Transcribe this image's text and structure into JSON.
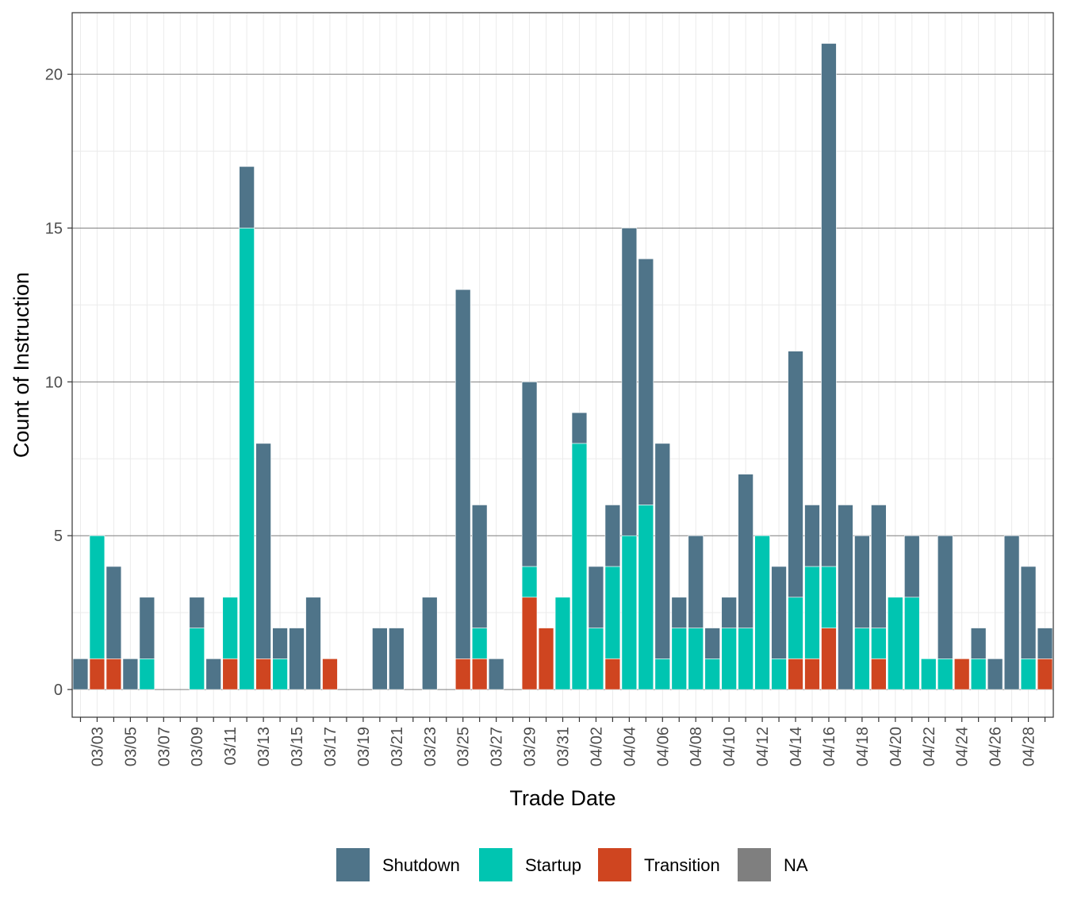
{
  "chart_data": {
    "type": "bar",
    "stacked": true,
    "xlabel": "Trade Date",
    "ylabel": "Count of Instruction",
    "ylim": [
      -0.9,
      22
    ],
    "y_ticks": [
      0,
      5,
      10,
      15,
      20
    ],
    "x_tick_labels": [
      "03/03",
      "03/05",
      "03/07",
      "03/09",
      "03/11",
      "03/13",
      "03/15",
      "03/17",
      "03/19",
      "03/21",
      "03/23",
      "03/25",
      "03/27",
      "03/29",
      "03/31",
      "04/02",
      "04/04",
      "04/06",
      "04/08",
      "04/10",
      "04/12",
      "04/14",
      "04/16",
      "04/18",
      "04/20",
      "04/22",
      "04/24",
      "04/26",
      "04/28"
    ],
    "grid": true,
    "legend_position": "bottom",
    "colors": {
      "Shutdown": "#4f7489",
      "Startup": "#00c5b1",
      "Transition": "#cf4520",
      "NA": "#7f7f7f"
    },
    "categories": [
      "03/02",
      "03/03",
      "03/04",
      "03/05",
      "03/06",
      "03/07",
      "03/08",
      "03/09",
      "03/10",
      "03/11",
      "03/12",
      "03/13",
      "03/14",
      "03/15",
      "03/16",
      "03/17",
      "03/18",
      "03/19",
      "03/20",
      "03/21",
      "03/22",
      "03/23",
      "03/24",
      "03/25",
      "03/26",
      "03/27",
      "03/28",
      "03/29",
      "03/30",
      "03/31",
      "04/01",
      "04/02",
      "04/03",
      "04/04",
      "04/05",
      "04/06",
      "04/07",
      "04/08",
      "04/09",
      "04/10",
      "04/11",
      "04/12",
      "04/13",
      "04/14",
      "04/15",
      "04/16",
      "04/17",
      "04/18",
      "04/19",
      "04/20",
      "04/21",
      "04/22",
      "04/23",
      "04/24",
      "04/25",
      "04/26",
      "04/27",
      "04/28",
      "04/29"
    ],
    "series": [
      {
        "name": "Transition",
        "values": [
          0,
          1,
          1,
          0,
          0,
          0,
          0,
          0,
          0,
          1,
          0,
          1,
          0,
          0,
          0,
          1,
          0,
          0,
          0,
          0,
          0,
          0,
          0,
          1,
          1,
          0,
          0,
          3,
          2,
          0,
          0,
          0,
          1,
          0,
          0,
          0,
          0,
          0,
          0,
          0,
          0,
          0,
          0,
          1,
          1,
          2,
          0,
          0,
          1,
          0,
          0,
          0,
          0,
          1,
          0,
          0,
          0,
          0,
          1
        ]
      },
      {
        "name": "Startup",
        "values": [
          0,
          4,
          0,
          0,
          1,
          0,
          0,
          2,
          0,
          2,
          15,
          0,
          1,
          0,
          0,
          0,
          0,
          0,
          0,
          0,
          0,
          0,
          0,
          0,
          1,
          0,
          0,
          1,
          0,
          3,
          8,
          2,
          3,
          5,
          6,
          1,
          2,
          2,
          1,
          2,
          2,
          5,
          1,
          2,
          3,
          2,
          0,
          2,
          1,
          3,
          3,
          1,
          1,
          0,
          1,
          0,
          0,
          1,
          0
        ]
      },
      {
        "name": "Shutdown",
        "values": [
          1,
          0,
          3,
          1,
          2,
          0,
          0,
          1,
          1,
          0,
          2,
          7,
          1,
          2,
          3,
          0,
          0,
          0,
          2,
          2,
          0,
          3,
          0,
          12,
          4,
          1,
          0,
          6,
          0,
          0,
          1,
          2,
          2,
          10,
          8,
          7,
          1,
          3,
          1,
          1,
          5,
          0,
          3,
          8,
          2,
          17,
          6,
          3,
          4,
          0,
          2,
          0,
          4,
          0,
          1,
          1,
          5,
          3,
          1
        ]
      },
      {
        "name": "NA",
        "values": [
          0,
          0,
          0,
          0,
          0,
          0,
          0,
          0,
          0,
          0,
          0,
          0,
          0,
          0,
          0,
          0,
          0,
          0,
          0,
          0,
          0,
          0,
          0,
          0,
          0,
          0,
          0,
          0,
          0,
          0,
          0,
          0,
          0,
          0,
          0,
          0,
          0,
          0,
          0,
          0,
          0,
          0,
          0,
          0,
          0,
          0,
          0,
          0,
          0,
          0,
          0,
          0,
          0,
          0,
          0,
          0,
          0,
          0,
          0
        ]
      }
    ],
    "legend": [
      "Shutdown",
      "Startup",
      "Transition",
      "NA"
    ]
  }
}
